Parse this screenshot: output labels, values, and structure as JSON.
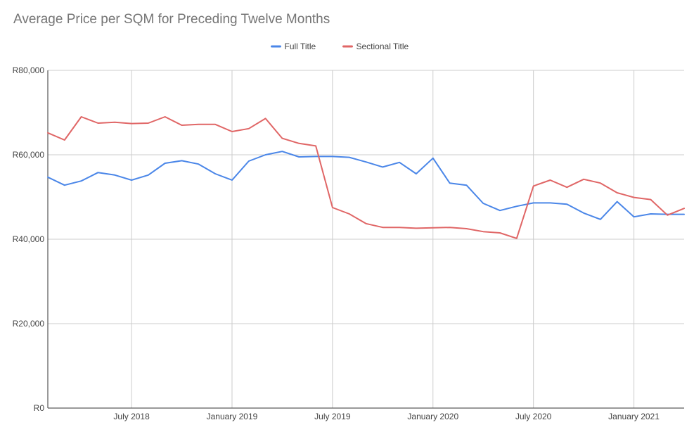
{
  "chart_data": {
    "type": "line",
    "title": "Average Price per SQM for Preceding Twelve Months",
    "xlabel": "",
    "ylabel": "",
    "legend_position": "top",
    "grid": true,
    "ylim": [
      0,
      80000
    ],
    "y_ticks": [
      {
        "value": 0,
        "label": "R0"
      },
      {
        "value": 20000,
        "label": "R20,000"
      },
      {
        "value": 40000,
        "label": "R40,000"
      },
      {
        "value": 60000,
        "label": "R60,000"
      },
      {
        "value": 80000,
        "label": "R80,000"
      }
    ],
    "x": [
      "2018-02",
      "2018-03",
      "2018-04",
      "2018-05",
      "2018-06",
      "2018-07",
      "2018-08",
      "2018-09",
      "2018-10",
      "2018-11",
      "2018-12",
      "2019-01",
      "2019-02",
      "2019-03",
      "2019-04",
      "2019-05",
      "2019-06",
      "2019-07",
      "2019-08",
      "2019-09",
      "2019-10",
      "2019-11",
      "2019-12",
      "2020-01",
      "2020-02",
      "2020-03",
      "2020-04",
      "2020-05",
      "2020-06",
      "2020-07",
      "2020-08",
      "2020-09",
      "2020-10",
      "2020-11",
      "2020-12",
      "2021-01",
      "2021-02",
      "2021-03",
      "2021-04"
    ],
    "x_ticks": [
      {
        "x": "2018-07",
        "label": "July 2018"
      },
      {
        "x": "2019-01",
        "label": "January 2019"
      },
      {
        "x": "2019-07",
        "label": "July 2019"
      },
      {
        "x": "2020-01",
        "label": "January 2020"
      },
      {
        "x": "2020-07",
        "label": "July 2020"
      },
      {
        "x": "2021-01",
        "label": "January 2021"
      }
    ],
    "series": [
      {
        "name": "Full Title",
        "color": "#4a86e8",
        "values": [
          54700,
          52800,
          53800,
          55800,
          55200,
          54000,
          55200,
          58000,
          58600,
          57800,
          55500,
          54000,
          58500,
          60000,
          60800,
          59500,
          59600,
          59600,
          59400,
          58300,
          57100,
          58200,
          55500,
          59200,
          53300,
          52800,
          48500,
          46800,
          47800,
          48600,
          48600,
          48300,
          46200,
          44700,
          48900,
          45300,
          46000,
          45900,
          45900
        ]
      },
      {
        "name": "Sectional Title",
        "color": "#e06666",
        "values": [
          65200,
          63500,
          69000,
          67500,
          67700,
          67400,
          67500,
          69000,
          67000,
          67200,
          67200,
          65500,
          66200,
          68600,
          63900,
          62700,
          62100,
          47500,
          46000,
          43700,
          42800,
          42800,
          42600,
          42700,
          42800,
          42500,
          41800,
          41500,
          40200,
          52600,
          54000,
          52300,
          54200,
          53300,
          51000,
          49900,
          49400,
          45700,
          47300
        ]
      }
    ]
  }
}
